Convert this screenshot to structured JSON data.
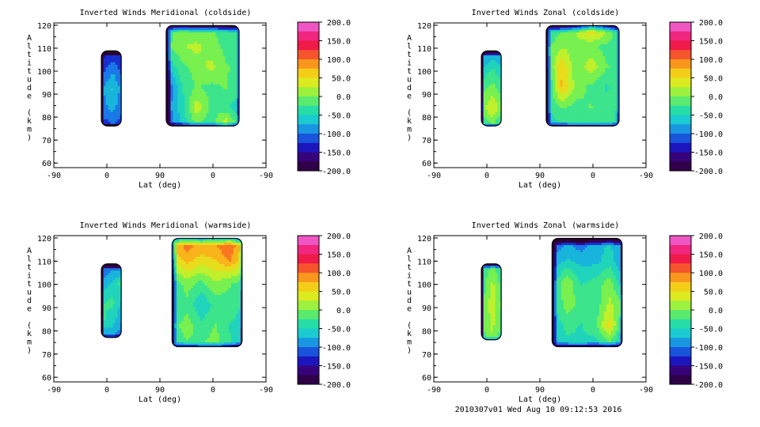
{
  "footer": "2010307v01 Wed Aug 10 09:12:53 2016",
  "colorbar": {
    "min": -200,
    "max": 200,
    "labels": [
      "200.0",
      "150.0",
      "100.0",
      "50.0",
      "0.0",
      "-50.0",
      "-100.0",
      "-150.0",
      "-200.0"
    ],
    "stops": [
      "#2a0030",
      "#3a0070",
      "#1818c8",
      "#1a78e8",
      "#18c8d8",
      "#28e0a0",
      "#78f050",
      "#d8f020",
      "#f8c818",
      "#f87820",
      "#f01840",
      "#f02888",
      "#f070e8"
    ]
  },
  "chart_data": [
    {
      "type": "heatmap",
      "title": "Inverted Winds Meridional (coldside)",
      "ylabel": "Altitude (km)",
      "xlabel": "Lat (deg)",
      "x_ticks": [
        "-90",
        "0",
        "90",
        "0",
        "-90"
      ],
      "y_ticks": [
        60,
        70,
        80,
        90,
        100,
        110,
        120
      ],
      "ylim": [
        58,
        121
      ],
      "regions": [
        {
          "lat_range": [
            -10,
            25
          ],
          "alt_range": [
            76,
            109
          ],
          "values": [
            [
              -150,
              -140,
              -150
            ],
            [
              -120,
              -90,
              -120
            ],
            [
              -90,
              -60,
              -100
            ],
            [
              -100,
              -80,
              -110
            ],
            [
              -130,
              -120,
              -130
            ]
          ]
        },
        {
          "lat_range": [
            100,
            225
          ],
          "alt_range": [
            76,
            120
          ],
          "values": [
            [
              -30,
              0,
              -20,
              -10,
              -30,
              -40
            ],
            [
              -20,
              10,
              20,
              0,
              -20,
              -30
            ],
            [
              -60,
              -20,
              0,
              20,
              -10,
              -20
            ],
            [
              -120,
              -40,
              -10,
              -20,
              -10,
              -30
            ],
            [
              -100,
              -50,
              30,
              -20,
              -30,
              -60
            ],
            [
              -120,
              -60,
              -20,
              -30,
              50,
              -40
            ]
          ]
        }
      ]
    },
    {
      "type": "heatmap",
      "title": "Inverted Winds Zonal (coldside)",
      "ylabel": "Altitude (km)",
      "xlabel": "Lat (deg)",
      "x_ticks": [
        "-90",
        "0",
        "90",
        "0",
        "-90"
      ],
      "y_ticks": [
        60,
        70,
        80,
        90,
        100,
        110,
        120
      ],
      "ylim": [
        58,
        121
      ],
      "regions": [
        {
          "lat_range": [
            -10,
            25
          ],
          "alt_range": [
            76,
            109
          ],
          "values": [
            [
              -100,
              -80,
              -100
            ],
            [
              -60,
              -30,
              -60
            ],
            [
              -20,
              0,
              -30
            ],
            [
              0,
              40,
              -10
            ],
            [
              -40,
              -20,
              -60
            ]
          ]
        },
        {
          "lat_range": [
            100,
            225
          ],
          "alt_range": [
            76,
            120
          ],
          "values": [
            [
              -40,
              -20,
              20,
              80,
              30,
              -40
            ],
            [
              -20,
              10,
              0,
              -10,
              -20,
              -30
            ],
            [
              -30,
              60,
              -10,
              30,
              -10,
              -20
            ],
            [
              -60,
              70,
              0,
              -20,
              -40,
              -30
            ],
            [
              -40,
              -10,
              -20,
              -10,
              -30,
              -40
            ],
            [
              -60,
              -40,
              -20,
              -30,
              -10,
              -60
            ]
          ]
        }
      ]
    },
    {
      "type": "heatmap",
      "title": "Inverted Winds Meridional (warmside)",
      "ylabel": "Altitude (km)",
      "xlabel": "Lat (deg)",
      "x_ticks": [
        "-90",
        "0",
        "90",
        "0",
        "-90"
      ],
      "y_ticks": [
        60,
        70,
        80,
        90,
        100,
        110,
        120
      ],
      "ylim": [
        58,
        121
      ],
      "regions": [
        {
          "lat_range": [
            -10,
            25
          ],
          "alt_range": [
            77,
            109
          ],
          "values": [
            [
              -120,
              -100,
              -120
            ],
            [
              -80,
              -60,
              -20
            ],
            [
              -40,
              -30,
              -70
            ],
            [
              -30,
              -50,
              -90
            ],
            [
              -110,
              -90,
              -110
            ]
          ]
        },
        {
          "lat_range": [
            110,
            230
          ],
          "alt_range": [
            73,
            120
          ],
          "values": [
            [
              80,
              110,
              90,
              100,
              120,
              60
            ],
            [
              40,
              70,
              50,
              60,
              90,
              40
            ],
            [
              -30,
              0,
              -20,
              10,
              -10,
              -20
            ],
            [
              -40,
              -20,
              -60,
              -30,
              -20,
              -40
            ],
            [
              -20,
              0,
              -30,
              -10,
              -40,
              -50
            ],
            [
              -40,
              -20,
              -10,
              0,
              -30,
              -70
            ]
          ]
        }
      ]
    },
    {
      "type": "heatmap",
      "title": "Inverted Winds Zonal (warmside)",
      "ylabel": "Altitude (km)",
      "xlabel": "Lat (deg)",
      "x_ticks": [
        "-90",
        "0",
        "90",
        "0",
        "-90"
      ],
      "y_ticks": [
        60,
        70,
        80,
        90,
        100,
        110,
        120
      ],
      "ylim": [
        58,
        121
      ],
      "regions": [
        {
          "lat_range": [
            -10,
            25
          ],
          "alt_range": [
            76,
            109
          ],
          "values": [
            [
              -40,
              -10,
              -40
            ],
            [
              -30,
              20,
              -30
            ],
            [
              -20,
              30,
              -20
            ],
            [
              -10,
              20,
              -20
            ],
            [
              -30,
              10,
              -40
            ]
          ]
        },
        {
          "lat_range": [
            110,
            230
          ],
          "alt_range": [
            73,
            120
          ],
          "values": [
            [
              -120,
              -90,
              -110,
              -80,
              -60,
              -100
            ],
            [
              -80,
              -60,
              -70,
              -70,
              -50,
              -90
            ],
            [
              -50,
              10,
              -40,
              -30,
              0,
              -60
            ],
            [
              -40,
              0,
              -20,
              -30,
              20,
              -10
            ],
            [
              -60,
              -30,
              -40,
              -20,
              50,
              -50
            ],
            [
              -80,
              -50,
              -40,
              -60,
              -40,
              -80
            ]
          ]
        }
      ]
    }
  ]
}
